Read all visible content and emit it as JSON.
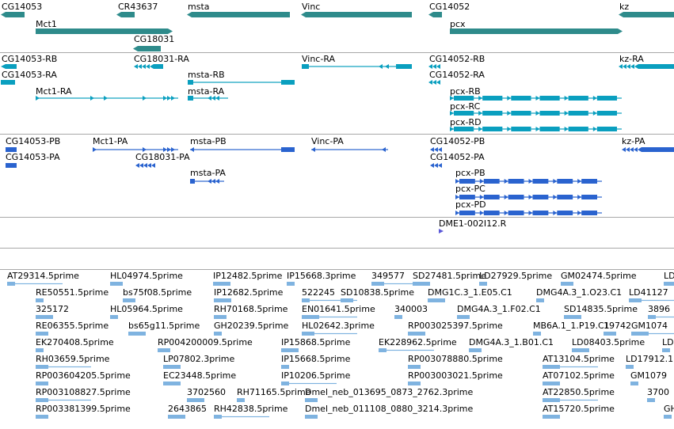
{
  "colors": {
    "gene": "#2e8b8b",
    "transcript": "#0a9fbf",
    "protein": "#2a63cf",
    "est": "#7fb3e0",
    "clone": "#5a58d8",
    "divider": "#a8a8a8"
  },
  "tracks": {
    "genes": {
      "label_color": "#000000",
      "features": [
        {
          "label": "CG14053",
          "strand": "-"
        },
        {
          "label": "CR43637",
          "strand": "-"
        },
        {
          "label": "msta",
          "strand": "-"
        },
        {
          "label": "Vinc",
          "strand": "-"
        },
        {
          "label": "CG14052",
          "strand": "-"
        },
        {
          "label": "kz",
          "strand": "-"
        },
        {
          "label": "Mct1",
          "strand": "+"
        },
        {
          "label": "pcx",
          "strand": "+"
        },
        {
          "label": "CG18031",
          "strand": "-"
        }
      ]
    },
    "transcripts": {
      "features": [
        {
          "label": "CG14053-RB",
          "strand": "-"
        },
        {
          "label": "CG18031-RA",
          "strand": "-"
        },
        {
          "label": "Vinc-RA",
          "strand": "-"
        },
        {
          "label": "CG14052-RB",
          "strand": "-"
        },
        {
          "label": "kz-RA",
          "strand": "-"
        },
        {
          "label": "CG14053-RA",
          "strand": "-"
        },
        {
          "label": "msta-RB",
          "strand": "-"
        },
        {
          "label": "CG14052-RA",
          "strand": "-"
        },
        {
          "label": "Mct1-RA",
          "strand": "+"
        },
        {
          "label": "msta-RA",
          "strand": "-"
        },
        {
          "label": "pcx-RB",
          "strand": "+"
        },
        {
          "label": "pcx-RC",
          "strand": "+"
        },
        {
          "label": "pcx-RD",
          "strand": "+"
        }
      ]
    },
    "proteins": {
      "features": [
        {
          "label": "CG14053-PB",
          "strand": "-"
        },
        {
          "label": "Mct1-PA",
          "strand": "+"
        },
        {
          "label": "msta-PB",
          "strand": "-"
        },
        {
          "label": "Vinc-PA",
          "strand": "-"
        },
        {
          "label": "CG14052-PB",
          "strand": "-"
        },
        {
          "label": "kz-PA",
          "strand": "-"
        },
        {
          "label": "CG14053-PA",
          "strand": "-"
        },
        {
          "label": "CG18031-PA",
          "strand": "-"
        },
        {
          "label": "CG14052-PA",
          "strand": "-"
        },
        {
          "label": "msta-PA",
          "strand": "-"
        },
        {
          "label": "pcx-PB",
          "strand": "+"
        },
        {
          "label": "pcx-PC",
          "strand": "+"
        },
        {
          "label": "pcx-PD",
          "strand": "+"
        }
      ]
    },
    "clones": {
      "features": [
        {
          "label": "DME1-002I12.R",
          "strand": "+"
        }
      ]
    },
    "ests": {
      "features": [
        {
          "label": "AT29314.5prime"
        },
        {
          "label": "HL04974.5prime"
        },
        {
          "label": "IP12482.5prime"
        },
        {
          "label": "IP15668.3prime"
        },
        {
          "label": "349577"
        },
        {
          "label": "SD27481.5prime"
        },
        {
          "label": "LD27929.5prime"
        },
        {
          "label": "GM02474.5prime"
        },
        {
          "label": "LD"
        },
        {
          "label": "RE50551.5prime"
        },
        {
          "label": "bs75f08.5prime"
        },
        {
          "label": "IP12682.5prime"
        },
        {
          "label": "522245"
        },
        {
          "label": "SD10838.5prime"
        },
        {
          "label": "DMG1C.3_1.E05.C1"
        },
        {
          "label": "DMG4A.3_1.O23.C1"
        },
        {
          "label": "LD41127"
        },
        {
          "label": "325172"
        },
        {
          "label": "HL05964.5prime"
        },
        {
          "label": "RH70168.5prime"
        },
        {
          "label": "EN01641.5prime"
        },
        {
          "label": "340003"
        },
        {
          "label": "DMG4A.3_1.F02.C1"
        },
        {
          "label": "SD14835.5prime"
        },
        {
          "label": "3896"
        },
        {
          "label": "RE06355.5prime"
        },
        {
          "label": "bs65g11.5prime"
        },
        {
          "label": "GH20239.5prime"
        },
        {
          "label": "HL02642.3prime"
        },
        {
          "label": "RP003025397.5prime"
        },
        {
          "label": "MB6A.1_1.P19.C1"
        },
        {
          "label": "19742"
        },
        {
          "label": "GM1074"
        },
        {
          "label": "EK270408.5prime"
        },
        {
          "label": "RP004200009.5prime"
        },
        {
          "label": "IP15868.5prime"
        },
        {
          "label": "EK228962.5prime"
        },
        {
          "label": "DMG4A.3_1.B01.C1"
        },
        {
          "label": "LD08403.5prime"
        },
        {
          "label": "LD"
        },
        {
          "label": "RH03659.5prime"
        },
        {
          "label": "LP07802.3prime"
        },
        {
          "label": "IP15668.5prime"
        },
        {
          "label": "RP003078880.5prime"
        },
        {
          "label": "AT13104.5prime"
        },
        {
          "label": "LD17912.1"
        },
        {
          "label": "RP003604205.5prime"
        },
        {
          "label": "EC23448.5prime"
        },
        {
          "label": "IP10206.5prime"
        },
        {
          "label": "RP003003021.5prime"
        },
        {
          "label": "AT07102.5prime"
        },
        {
          "label": "GM1079"
        },
        {
          "label": "RP003108827.5prime"
        },
        {
          "label": "3702560"
        },
        {
          "label": "RH71165.5prime"
        },
        {
          "label": "Dmel_neb_013695_0873_2762.3prime"
        },
        {
          "label": "AT22850.5prime"
        },
        {
          "label": "3700"
        },
        {
          "label": "RP003381399.5prime"
        },
        {
          "label": "2643865"
        },
        {
          "label": "RH42838.5prime"
        },
        {
          "label": "Dmel_neb_011108_0880_3214.3prime"
        },
        {
          "label": "AT15720.5prime"
        },
        {
          "label": "GH"
        }
      ]
    }
  }
}
